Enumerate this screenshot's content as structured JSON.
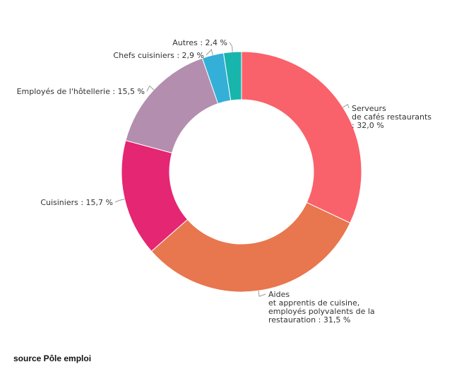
{
  "chart_data": {
    "type": "pie",
    "donut": true,
    "slices": [
      {
        "label": "Serveurs\nde cafés restaurants\n: 32,0 %",
        "value": 32.0,
        "color": "#f9626a"
      },
      {
        "label": "Aides\net apprentis de cuisine,\nemployés polyvalents de la\nrestauration : 31,5 %",
        "value": 31.5,
        "color": "#e8764e"
      },
      {
        "label": "Cuisiniers : 15,7 %",
        "value": 15.7,
        "color": "#e52673"
      },
      {
        "label": "Employés de l'hôtellerie : 15,5 %",
        "value": 15.5,
        "color": "#b38eae"
      },
      {
        "label": "Chefs cuisiniers : 2,9 %",
        "value": 2.9,
        "color": "#34afd7"
      },
      {
        "label": "Autres : 2,4 %",
        "value": 2.4,
        "color": "#18b5ad"
      }
    ]
  },
  "source": "source Pôle emploi"
}
